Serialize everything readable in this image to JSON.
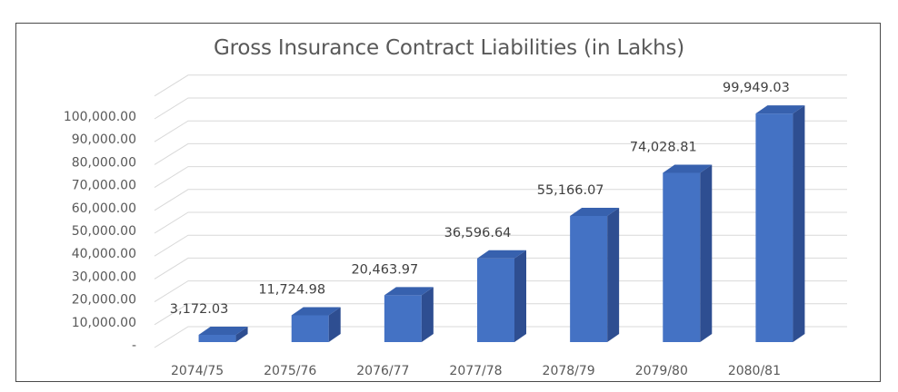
{
  "chart_data": {
    "type": "bar",
    "title": "Gross Insurance Contract Liabilities (in Lakhs)",
    "categories": [
      "2074/75",
      "2075/76",
      "2076/77",
      "2077/78",
      "2078/79",
      "2079/80",
      "2080/81"
    ],
    "values": [
      3172.03,
      11724.98,
      20463.97,
      36596.64,
      55166.07,
      74028.81,
      99949.03
    ],
    "value_labels": [
      "3,172.03",
      "11,724.98",
      "20,463.97",
      "36,596.64",
      "55,166.07",
      "74,028.81",
      "99,949.03"
    ],
    "y_ticks": [
      0,
      10000,
      20000,
      30000,
      40000,
      50000,
      60000,
      70000,
      80000,
      90000,
      100000
    ],
    "y_tick_labels": [
      "-",
      "10,000.00",
      "20,000.00",
      "30,000.00",
      "40,000.00",
      "50,000.00",
      "60,000.00",
      "70,000.00",
      "80,000.00",
      "90,000.00",
      "100,000.00"
    ],
    "ylim": [
      0,
      110000
    ],
    "xlabel": "",
    "ylabel": "",
    "grid": true,
    "legend": "none",
    "style": "3d-column",
    "colors": {
      "bar_front": "#4472C4",
      "bar_side": "#2E4E91",
      "bar_top": "#3761AE",
      "grid": "#D9D9D9",
      "text": "#595959"
    }
  }
}
